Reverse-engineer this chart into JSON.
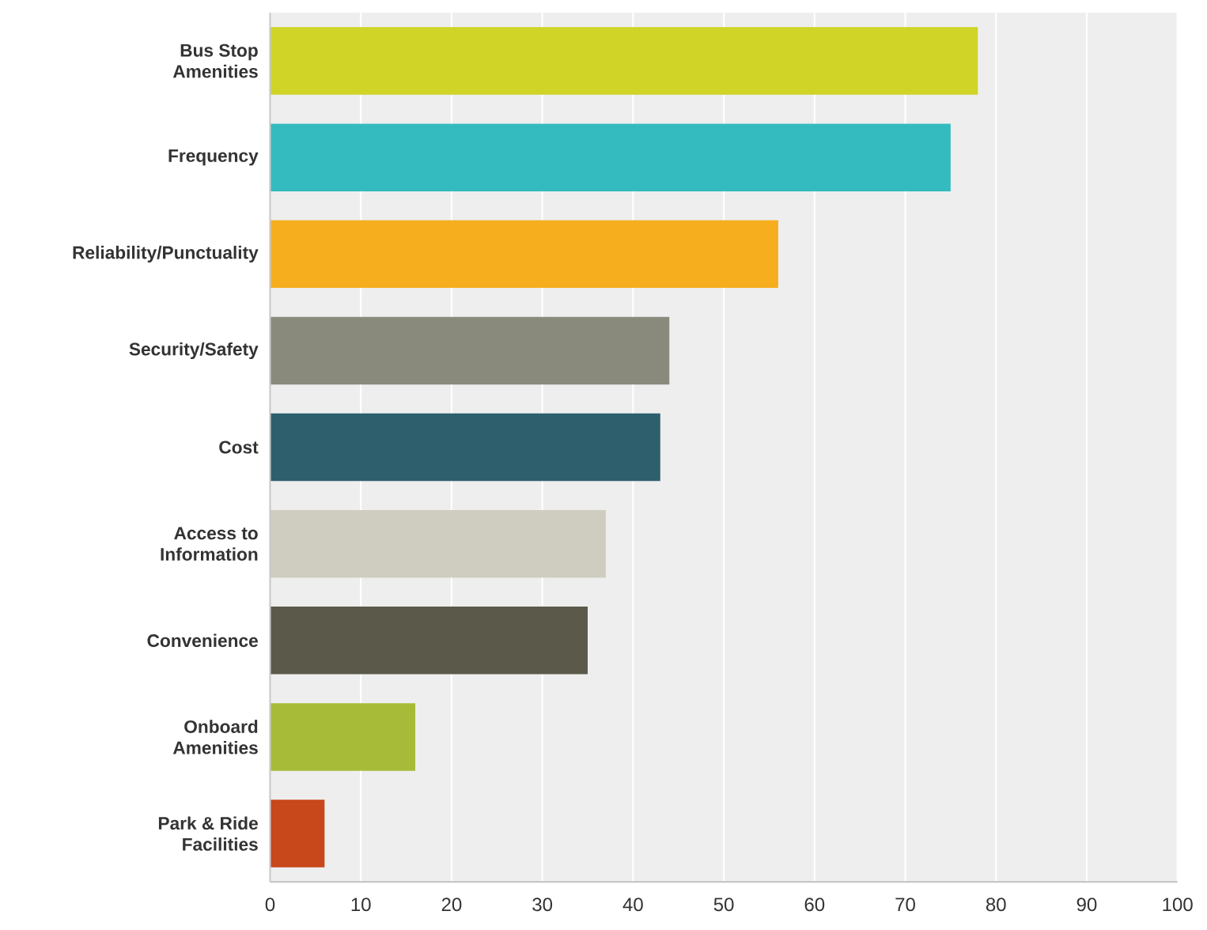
{
  "chart_data": {
    "type": "bar",
    "orientation": "horizontal",
    "categories": [
      "Bus Stop Amenities",
      "Frequency",
      "Reliability/Punctuality",
      "Security/Safety",
      "Cost",
      "Access to Information",
      "Convenience",
      "Onboard Amenities",
      "Park & Ride Facilities"
    ],
    "values": [
      78,
      75,
      56,
      44,
      43,
      37,
      35,
      16,
      6
    ],
    "colors": [
      "#cfd426",
      "#33bbbf",
      "#f6ad1e",
      "#898a7b",
      "#2e5f6c",
      "#cfcdbf",
      "#5b594a",
      "#a8bb38",
      "#c8471b"
    ],
    "xlim": [
      0,
      100
    ],
    "xticks": [
      0,
      10,
      20,
      30,
      40,
      50,
      60,
      70,
      80,
      90,
      100
    ],
    "grid": "x"
  }
}
